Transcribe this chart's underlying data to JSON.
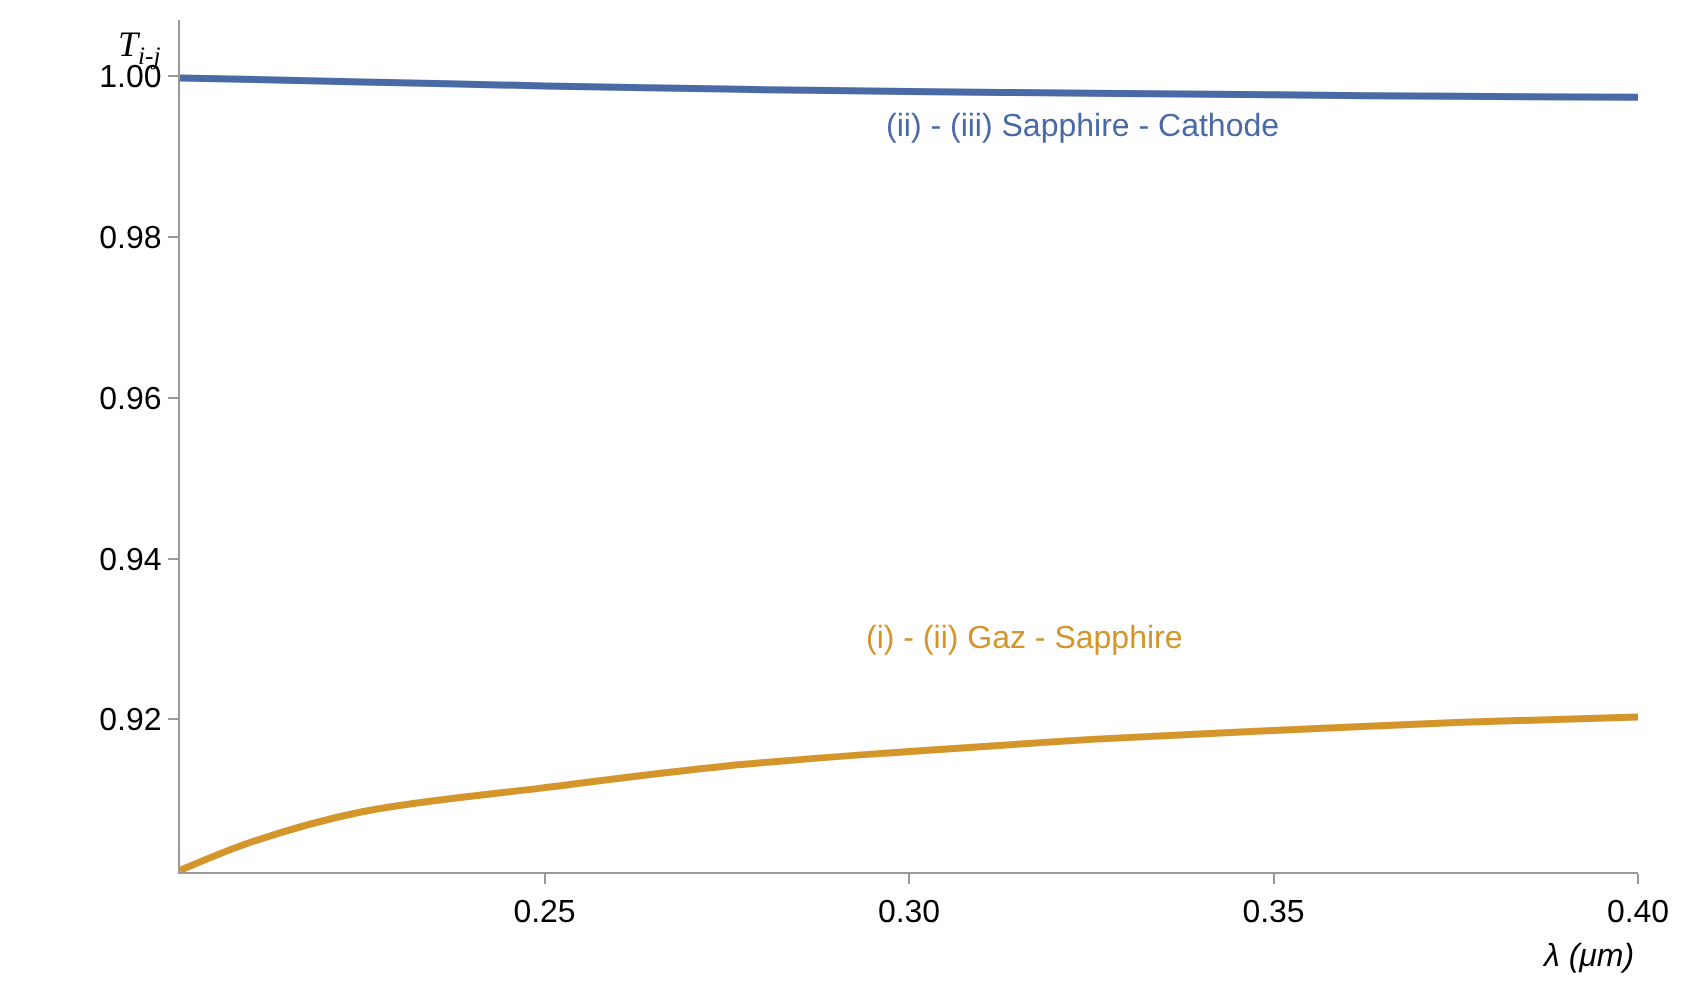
{
  "chart_data": {
    "type": "line",
    "xlabel": "λ (μm)",
    "ylabel": "T$_{i-j}$",
    "xlim": [
      0.2,
      0.4
    ],
    "ylim": [
      0.901,
      1.007
    ],
    "xticks": [
      0.25,
      {
        "value": 0.3,
        "label": "0.30"
      },
      0.35,
      {
        "value": 0.4,
        "label": "0.40"
      }
    ],
    "yticks": [
      0.92,
      0.94,
      0.96,
      0.98,
      {
        "value": 1.0,
        "label": "1.00"
      }
    ],
    "grid": false,
    "legend": false,
    "marker": "none",
    "line_style": "solid",
    "series": [
      {
        "name": "(ii) - (iii) Sapphire - Cathode",
        "color": "#4a6aa5",
        "x": [
          0.2,
          0.225,
          0.25,
          0.275,
          0.3,
          0.325,
          0.35,
          0.375,
          0.4
        ],
        "values": [
          0.9998,
          0.9993,
          0.9988,
          0.9984,
          0.9981,
          0.9979,
          0.9977,
          0.9975,
          0.9974
        ]
      },
      {
        "name": "(i) - (ii) Gaz - Sapphire",
        "color": "#d4952a",
        "x": [
          0.2,
          0.21,
          0.225,
          0.25,
          0.275,
          0.3,
          0.325,
          0.35,
          0.375,
          0.4
        ],
        "values": [
          0.9012,
          0.9048,
          0.9085,
          0.9115,
          0.9142,
          0.916,
          0.9175,
          0.9186,
          0.9196,
          0.9203
        ]
      }
    ]
  }
}
